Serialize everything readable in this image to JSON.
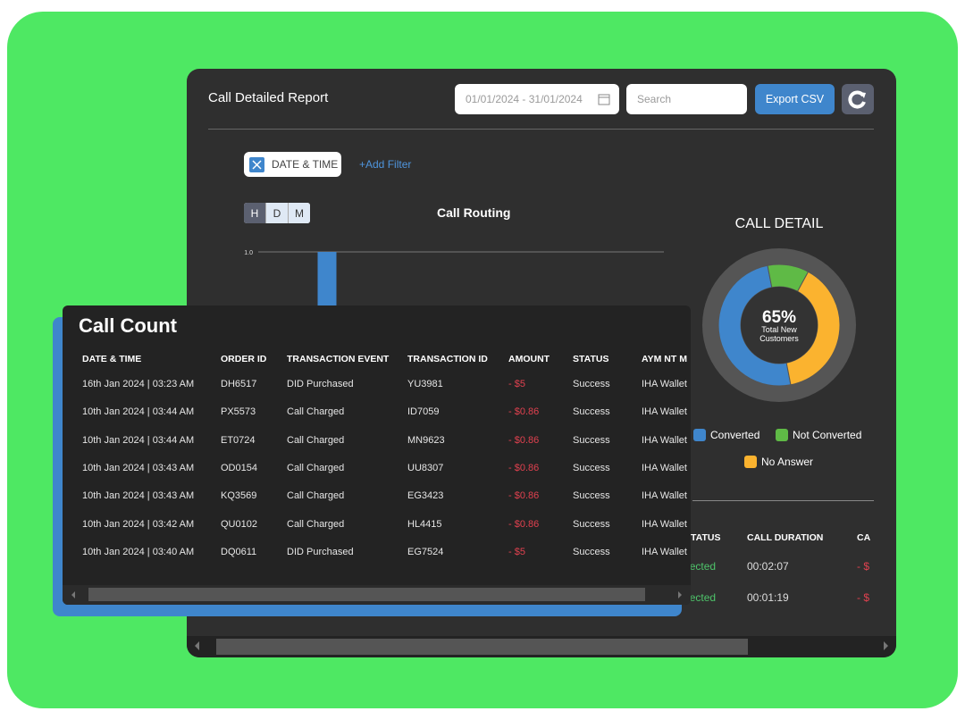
{
  "header": {
    "title": "Call Detailed Report",
    "date_range": "01/01/2024 - 31/01/2024",
    "search_placeholder": "Search",
    "export_button": "Export CSV"
  },
  "filters": {
    "chip": "DATE & TIME",
    "add_filter": "+Add Filter"
  },
  "granularity": [
    "H",
    "D",
    "M"
  ],
  "chart_data": [
    {
      "type": "bar",
      "title": "Call Routing",
      "categories": [
        null
      ],
      "values": [
        1
      ],
      "color": "#3f86cc",
      "ylim": [
        0,
        1
      ],
      "yticks": [
        {
          "value": 1,
          "label": "1.0"
        }
      ],
      "grid": true
    },
    {
      "type": "pie",
      "title": "CALL DETAIL",
      "center_label": "65%",
      "center_caption": "Total New Customers",
      "categories": [
        "Converted",
        "Not Converted",
        "No Answer"
      ],
      "values": [
        50,
        11,
        39
      ],
      "colors": [
        "#3f86cc",
        "#5fba46",
        "#fbb32f"
      ]
    }
  ],
  "call_count": {
    "title": "Call Count",
    "columns": [
      "DATE & TIME",
      "ORDER ID",
      "TRANSACTION EVENT",
      "TRANSACTION ID",
      "AMOUNT",
      "STATUS",
      "AYM NT M"
    ],
    "rows": [
      [
        "16th Jan 2024 | 03:23 AM",
        "DH6517",
        "DID Purchased",
        "YU3981",
        "- $5",
        "Success",
        "IHA Wallet"
      ],
      [
        "10th Jan 2024 | 03:44 AM",
        "PX5573",
        "Call Charged",
        "ID7059",
        "- $0.86",
        "Success",
        "IHA Wallet"
      ],
      [
        "10th Jan 2024 | 03:44 AM",
        "ET0724",
        "Call Charged",
        "MN9623",
        "- $0.86",
        "Success",
        "IHA Wallet"
      ],
      [
        "10th Jan 2024 | 03:43 AM",
        "OD0154",
        "Call Charged",
        "UU8307",
        "- $0.86",
        "Success",
        "IHA Wallet"
      ],
      [
        "10th Jan 2024 | 03:43 AM",
        "KQ3569",
        "Call Charged",
        "EG3423",
        "- $0.86",
        "Success",
        "IHA Wallet"
      ],
      [
        "10th Jan 2024 | 03:42 AM",
        "QU0102",
        "Call Charged",
        "HL4415",
        "- $0.86",
        "Success",
        "IHA Wallet"
      ],
      [
        "10th Jan 2024 | 03:40 AM",
        "DQ0611",
        "DID Purchased",
        "EG7524",
        "- $5",
        "Success",
        "IHA Wallet"
      ]
    ]
  },
  "call_log": {
    "columns": [
      "STATUS",
      "CALL DURATION",
      "CA"
    ],
    "rows": [
      [
        "Connected",
        "00:02:07",
        "- $"
      ],
      [
        "Connected",
        "00:01:19",
        "- $"
      ]
    ]
  }
}
